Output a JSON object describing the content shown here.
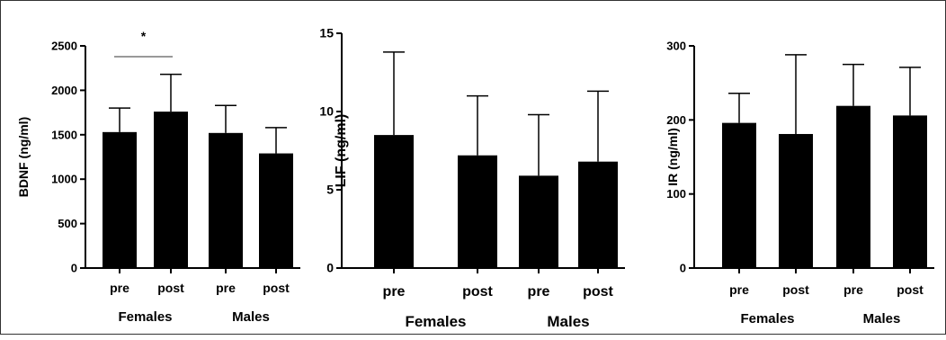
{
  "chart_data": [
    {
      "type": "bar",
      "ylabel": "BDNF (ng/ml)",
      "ylim": [
        0,
        2500
      ],
      "yticks": [
        0,
        500,
        1000,
        1500,
        2000,
        2500
      ],
      "categories": [
        "pre",
        "post",
        "pre",
        "post"
      ],
      "groups": [
        "Females",
        "Males"
      ],
      "values": [
        1530,
        1760,
        1520,
        1290
      ],
      "errors": [
        270,
        420,
        310,
        290
      ],
      "significance": [
        {
          "from": 0,
          "to": 1,
          "label": "*"
        }
      ]
    },
    {
      "type": "bar",
      "ylabel": "LIF (ng/ml)",
      "ylim": [
        0,
        15
      ],
      "yticks": [
        0,
        5,
        10,
        15
      ],
      "categories": [
        "pre",
        "post",
        "pre",
        "post"
      ],
      "groups": [
        "Females",
        "Males"
      ],
      "values": [
        8.5,
        7.2,
        5.9,
        6.8
      ],
      "errors": [
        5.3,
        3.8,
        3.9,
        4.5
      ],
      "significance": []
    },
    {
      "type": "bar",
      "ylabel": "IR (ng/ml)",
      "ylim": [
        0,
        300
      ],
      "yticks": [
        0,
        100,
        200,
        300
      ],
      "categories": [
        "pre",
        "post",
        "pre",
        "post"
      ],
      "groups": [
        "Females",
        "Males"
      ],
      "values": [
        196,
        181,
        219,
        206
      ],
      "errors": [
        40,
        107,
        56,
        65
      ],
      "significance": []
    }
  ]
}
